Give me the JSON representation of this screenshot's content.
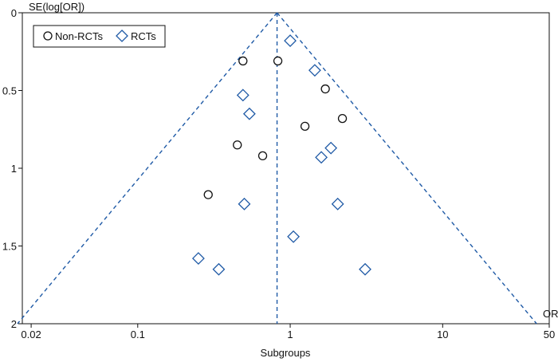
{
  "chart_data": {
    "type": "scatter",
    "subtype": "funnel-plot",
    "title": "",
    "xlabel": "Subgroups",
    "x_axis_end_label": "OR",
    "ylabel": "SE(log[OR])",
    "x_scale": "log",
    "y_inverted": true,
    "xlim": [
      0.0175,
      50
    ],
    "ylim": [
      0,
      2
    ],
    "x_ticks": [
      {
        "value": 0.02,
        "label": "0.02"
      },
      {
        "value": 0.1,
        "label": "0.1"
      },
      {
        "value": 1,
        "label": "1"
      },
      {
        "value": 10,
        "label": "10"
      },
      {
        "value": 50,
        "label": "50"
      }
    ],
    "y_ticks": [
      {
        "value": 0,
        "label": "0"
      },
      {
        "value": 0.5,
        "label": "0.5"
      },
      {
        "value": 1,
        "label": "1"
      },
      {
        "value": 1.5,
        "label": "1.5"
      },
      {
        "value": 2,
        "label": "2"
      }
    ],
    "grid": false,
    "legend_position": "top-left",
    "pooled_or": 0.82,
    "funnel_color": "#1f5aa6",
    "series": [
      {
        "name": "Non-RCTs",
        "marker": "circle",
        "color": "#111111",
        "points": [
          {
            "x": 0.49,
            "y": 0.31
          },
          {
            "x": 0.83,
            "y": 0.31
          },
          {
            "x": 1.7,
            "y": 0.49
          },
          {
            "x": 2.2,
            "y": 0.68
          },
          {
            "x": 1.25,
            "y": 0.73
          },
          {
            "x": 0.45,
            "y": 0.85
          },
          {
            "x": 0.66,
            "y": 0.92
          },
          {
            "x": 0.29,
            "y": 1.17
          }
        ]
      },
      {
        "name": "RCTs",
        "marker": "diamond",
        "color": "#1f5aa6",
        "points": [
          {
            "x": 1.0,
            "y": 0.18
          },
          {
            "x": 1.45,
            "y": 0.37
          },
          {
            "x": 0.49,
            "y": 0.53
          },
          {
            "x": 0.54,
            "y": 0.65
          },
          {
            "x": 1.85,
            "y": 0.87
          },
          {
            "x": 1.6,
            "y": 0.93
          },
          {
            "x": 0.5,
            "y": 1.23
          },
          {
            "x": 2.05,
            "y": 1.23
          },
          {
            "x": 1.05,
            "y": 1.44
          },
          {
            "x": 0.25,
            "y": 1.58
          },
          {
            "x": 0.34,
            "y": 1.65
          },
          {
            "x": 3.1,
            "y": 1.65
          }
        ]
      }
    ]
  }
}
